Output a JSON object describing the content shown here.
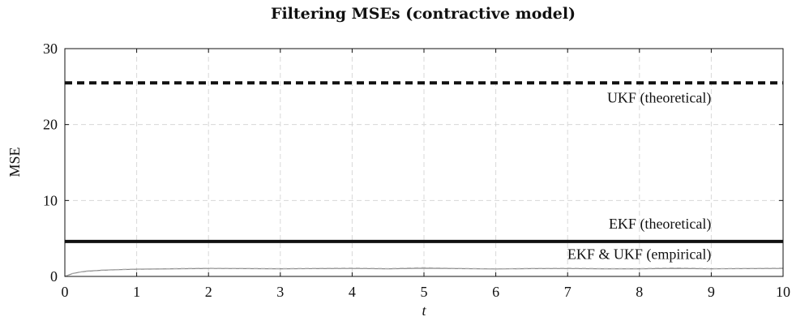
{
  "chart_data": {
    "type": "line",
    "title": "Filtering MSEs (contractive model)",
    "xlabel": "t",
    "ylabel": "MSE",
    "xlim": [
      0,
      10
    ],
    "ylim": [
      0,
      30
    ],
    "x_ticks": [
      0,
      1,
      2,
      3,
      4,
      5,
      6,
      7,
      8,
      9,
      10
    ],
    "y_ticks": [
      0,
      10,
      20,
      30
    ],
    "grid": true,
    "series": [
      {
        "name": "UKF (theoretical)",
        "style": "dashed",
        "color": "#111111",
        "x": [
          0,
          10
        ],
        "y": [
          25.5,
          25.5
        ]
      },
      {
        "name": "EKF (theoretical)",
        "style": "solid",
        "color": "#111111",
        "x": [
          0,
          10
        ],
        "y": [
          4.6,
          4.6
        ]
      },
      {
        "name": "EKF & UKF (empirical)",
        "style": "solid",
        "color": "#888888",
        "x": [
          0,
          0.1,
          0.2,
          0.3,
          0.5,
          0.7,
          1,
          1.5,
          2,
          2.5,
          3,
          3.5,
          4,
          4.5,
          5,
          5.5,
          6,
          6.5,
          7,
          7.5,
          8,
          8.5,
          9,
          9.5,
          10
        ],
        "y": [
          0,
          0.35,
          0.55,
          0.68,
          0.8,
          0.88,
          0.95,
          1.0,
          1.05,
          1.02,
          1.0,
          1.03,
          1.05,
          1.0,
          1.08,
          1.02,
          0.98,
          1.02,
          1.04,
          1.0,
          1.0,
          1.06,
          1.0,
          1.02,
          1.05
        ]
      },
      {
        "name": "EKF & UKF (empirical)",
        "style": "dashed",
        "color": "#aaaaaa",
        "x": [
          0,
          0.1,
          0.2,
          0.3,
          0.5,
          0.7,
          1,
          1.5,
          2,
          2.5,
          3,
          3.5,
          4,
          4.5,
          5,
          5.5,
          6,
          6.5,
          7,
          7.5,
          8,
          8.5,
          9,
          9.5,
          10
        ],
        "y": [
          0,
          0.37,
          0.57,
          0.7,
          0.82,
          0.9,
          0.97,
          1.02,
          1.08,
          1.05,
          1.02,
          1.06,
          1.1,
          1.03,
          1.15,
          1.05,
          1.0,
          1.05,
          1.08,
          1.02,
          1.03,
          1.12,
          1.03,
          1.05,
          1.1
        ]
      }
    ],
    "annotations": [
      {
        "text": "UKF (theoretical)",
        "x": 9.0,
        "y": 22.9
      },
      {
        "text": "EKF (theoretical)",
        "x": 9.0,
        "y": 6.3
      },
      {
        "text": "EKF & UKF (empirical)",
        "x": 9.0,
        "y": 2.3
      }
    ]
  }
}
